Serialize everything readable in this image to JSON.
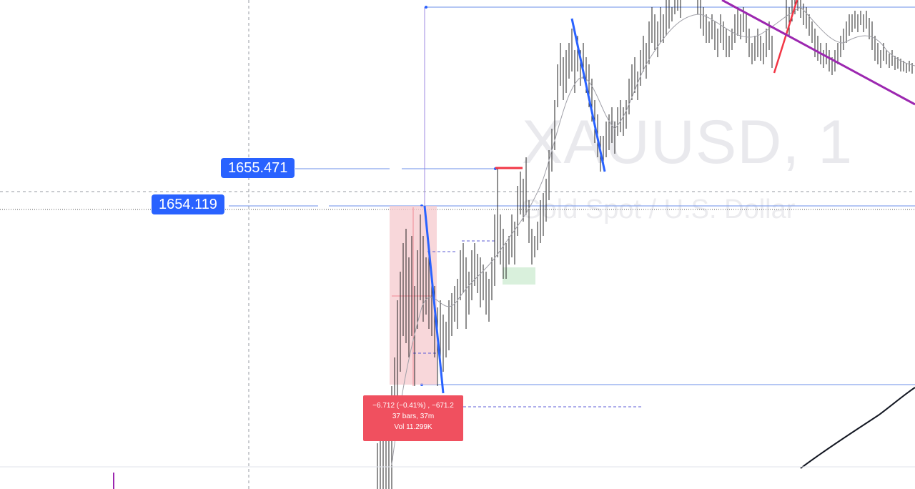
{
  "watermark": {
    "symbol": "XAUUSD, 1",
    "description": "Gold Spot / U.S. Dollar"
  },
  "price_labels": [
    {
      "value": "1655.471"
    },
    {
      "value": "1654.119"
    }
  ],
  "measurement": {
    "change": "−6.712 (−0.41%) , −671.2",
    "bars": "37 bars, 37m",
    "volume": "Vol 11.299K"
  },
  "colors": {
    "accent_blue": "#2962ff",
    "measure_red": "#f0505f",
    "trend_purple": "#9c27b0",
    "trend_red": "#f23645",
    "zone_green": "#d9f0dc"
  }
}
